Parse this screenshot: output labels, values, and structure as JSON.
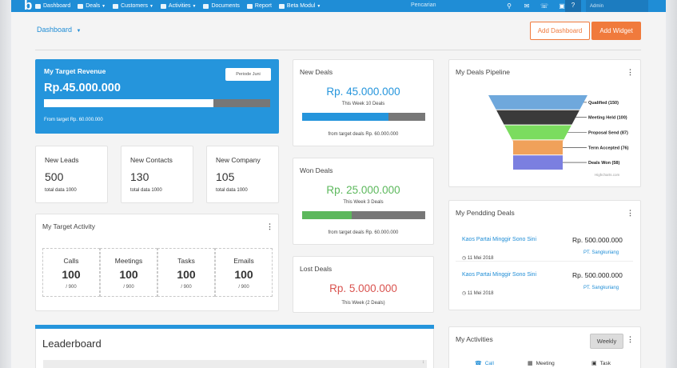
{
  "nav": {
    "logo": "b",
    "items": [
      {
        "label": "Dashboard",
        "caret": false
      },
      {
        "label": "Deals",
        "caret": true
      },
      {
        "label": "Customers",
        "caret": true
      },
      {
        "label": "Activities",
        "caret": true
      },
      {
        "label": "Documents",
        "caret": false
      },
      {
        "label": "Report",
        "caret": false
      },
      {
        "label": "Beta Modul",
        "caret": true
      }
    ],
    "search_placeholder": "Pencarian",
    "user": "Admin"
  },
  "toolbar": {
    "dashboard_label": "Dashboard",
    "add_dashboard": "Add Dashboard",
    "add_widget": "Add Widget"
  },
  "revenue": {
    "title": "My Target Revenue",
    "amount": "Rp.45.000.000",
    "period_button": "Periode Juni",
    "progress": 0.75,
    "from_prefix": "From target",
    "from_value": "Rp. 60.000.000"
  },
  "stats": [
    {
      "label": "New Leads",
      "value": "500",
      "sub": "total data 1000"
    },
    {
      "label": "New Contacts",
      "value": "130",
      "sub": "total data 1000"
    },
    {
      "label": "New Company",
      "value": "105",
      "sub": "total data 1000"
    }
  ],
  "activity": {
    "title": "My Target Activity",
    "boxes": [
      {
        "label": "Calls",
        "value": "100",
        "sub": "/ 900"
      },
      {
        "label": "Meetings",
        "value": "100",
        "sub": "/ 900"
      },
      {
        "label": "Tasks",
        "value": "100",
        "sub": "/ 900"
      },
      {
        "label": "Emails",
        "value": "100",
        "sub": "/ 900"
      }
    ]
  },
  "deals": [
    {
      "title": "New Deals",
      "amount": "Rp. 45.000.000",
      "week": "This Week 10 Deals",
      "progress": 0.7,
      "color": "#2595dc",
      "from": "from target deals Rp. 60.000.000"
    },
    {
      "title": "Won Deals",
      "amount": "Rp. 25.000.000",
      "week": "This Week 3 Deals",
      "progress": 0.4,
      "color": "#5cb85c",
      "from": "from target deals Rp. 60.000.000"
    },
    {
      "title": "Lost Deals",
      "amount": "Rp. 5.000.000",
      "week": "This Week (2 Deals)",
      "color": "#d9534f"
    }
  ],
  "leaderboard": {
    "title": "Leaderboard"
  },
  "pipeline": {
    "title": "My Deals Pipeline",
    "stages": [
      {
        "label": "Qualified (150)",
        "value": 150,
        "color": "#6fa8dc"
      },
      {
        "label": "Meeting Held (100)",
        "value": 100,
        "color": "#3a3a3a"
      },
      {
        "label": "Proposal Send (87)",
        "value": 87,
        "color": "#7bdc5f"
      },
      {
        "label": "Term Accepted (76)",
        "value": 76,
        "color": "#f0a15a"
      },
      {
        "label": "Deals Won (58)",
        "value": 58,
        "color": "#7b7fe0"
      }
    ],
    "credit": "Highcharts.com"
  },
  "pending": {
    "title": "My Pendding Deals",
    "rows": [
      {
        "title": "Kaos Partai Minggir Sono Sini",
        "price": "Rp. 500.000.000",
        "date": "11 Mei 2018",
        "company": "PT. Sangkuriang"
      },
      {
        "title": "Kaos Partai Minggir Sono Sini",
        "price": "Rp. 500.000.000",
        "date": "11 Mei 2018",
        "company": "PT. Sangkuriang"
      }
    ]
  },
  "my_activities": {
    "title": "My Activities",
    "filter": "Weekly",
    "tabs": [
      "Call",
      "Meeting",
      "Task"
    ]
  }
}
